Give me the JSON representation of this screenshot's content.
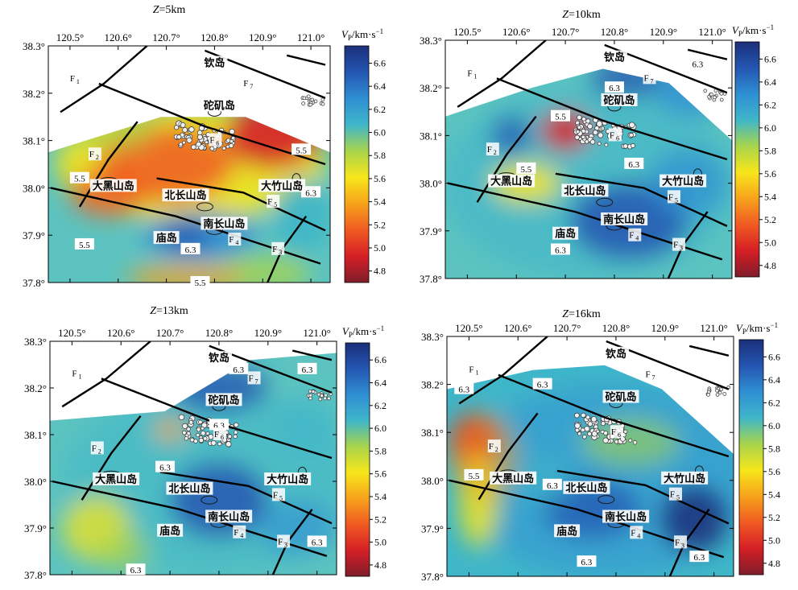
{
  "colorbar": {
    "label_prefix": "V",
    "label_sub": "P",
    "label_suffix": "/km·s",
    "label_exp": "−1",
    "ticks": [
      "6.6",
      "6.4",
      "6.2",
      "6.0",
      "5.8",
      "5.6",
      "5.4",
      "5.2",
      "5.0",
      "4.8"
    ],
    "range": [
      4.7,
      6.75
    ],
    "colors": [
      "#7f1d2a",
      "#d51f26",
      "#f05a22",
      "#f7a21b",
      "#f7e61b",
      "#a8d44c",
      "#3fb6c9",
      "#2f8fd3",
      "#2456b1",
      "#1b2f7a"
    ]
  },
  "panels": [
    {
      "title_var": "Z",
      "title_val": "=5km",
      "lon_ticks": [
        "120.5°",
        "120.6°",
        "120.7°",
        "120.8°",
        "120.9°",
        "121.0°"
      ],
      "lat_ticks": [
        "38.3°",
        "38.2°",
        "38.1°",
        "38.0°",
        "37.9°",
        "37.8°"
      ],
      "places": [
        "钦岛",
        "砣矶岛",
        "大黑山岛",
        "北长山岛",
        "南长山岛",
        "庙岛",
        "大竹山岛"
      ],
      "faults": [
        "1",
        "2",
        "3",
        "4",
        "5",
        "6",
        "7"
      ],
      "contours": [
        "5.5",
        "5.5",
        "5.5",
        "6.3",
        "6.3",
        "5.5"
      ]
    },
    {
      "title_var": "Z",
      "title_val": "=10km",
      "lon_ticks": [
        "120.5°",
        "120.6°",
        "120.7°",
        "120.8°",
        "120.9°",
        "121.0°"
      ],
      "lat_ticks": [
        "38.3°",
        "38.2°",
        "38.1°",
        "38.0°",
        "37.9°",
        "37.8°"
      ],
      "places": [
        "钦岛",
        "砣矶岛",
        "大黑山岛",
        "北长山岛",
        "南长山岛",
        "庙岛",
        "大竹山岛"
      ],
      "faults": [
        "1",
        "2",
        "3",
        "4",
        "5",
        "6",
        "7"
      ],
      "contours": [
        "5.5",
        "6.3",
        "5.5",
        "6.3",
        "6.3",
        "6.3"
      ]
    },
    {
      "title_var": "Z",
      "title_val": "=13km",
      "lon_ticks": [
        "120.5°",
        "120.6°",
        "120.7°",
        "120.8°",
        "120.9°",
        "121.0°"
      ],
      "lat_ticks": [
        "38.3°",
        "38.2°",
        "38.1°",
        "38.0°",
        "37.9°",
        "37.8°"
      ],
      "places": [
        "钦岛",
        "砣矶岛",
        "大黑山岛",
        "北长山岛",
        "南长山岛",
        "庙岛",
        "大竹山岛"
      ],
      "faults": [
        "1",
        "2",
        "3",
        "4",
        "5",
        "6",
        "7"
      ],
      "contours": [
        "6.3",
        "6.3",
        "6.3",
        "6.3",
        "6.3",
        "6.3"
      ]
    },
    {
      "title_var": "Z",
      "title_val": "=16km",
      "lon_ticks": [
        "120.5°",
        "120.6°",
        "120.7°",
        "120.8°",
        "120.9°",
        "121.0°"
      ],
      "lat_ticks": [
        "38.3°",
        "38.2°",
        "38.1°",
        "38.0°",
        "37.9°",
        "37.8°"
      ],
      "places": [
        "钦岛",
        "砣矶岛",
        "大黑山岛",
        "北长山岛",
        "南长山岛",
        "庙岛",
        "大竹山岛"
      ],
      "faults": [
        "1",
        "2",
        "3",
        "4",
        "5",
        "6",
        "7"
      ],
      "contours": [
        "6.3",
        "6.3",
        "5.5",
        "6.3",
        "6.3",
        "6.3"
      ]
    }
  ]
}
